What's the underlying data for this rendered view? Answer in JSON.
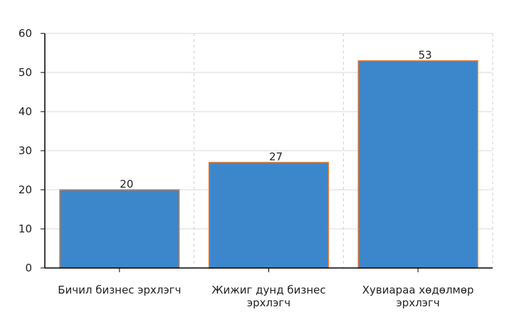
{
  "chart_data": {
    "type": "bar",
    "title": "",
    "xlabel": "",
    "ylabel": "",
    "categories": [
      [
        "Бичил бизнес эрхлэгч"
      ],
      [
        "Жижиг дунд бизнес",
        "эрхлэгч"
      ],
      [
        "Хувиараа хөдөлмөр",
        "эрхлэгч"
      ]
    ],
    "values": [
      20,
      27,
      53
    ],
    "ylim": [
      0,
      60
    ],
    "yticks": [
      0,
      10,
      20,
      30,
      40,
      50,
      60
    ],
    "grid": true,
    "legend": "none",
    "colors": {
      "bar_fill": "#3c87cc",
      "bar_stroke": "#e8772e",
      "grid_h": "#d9d9d9",
      "grid_v": "#cfcfcf",
      "axis": "#000000"
    }
  }
}
